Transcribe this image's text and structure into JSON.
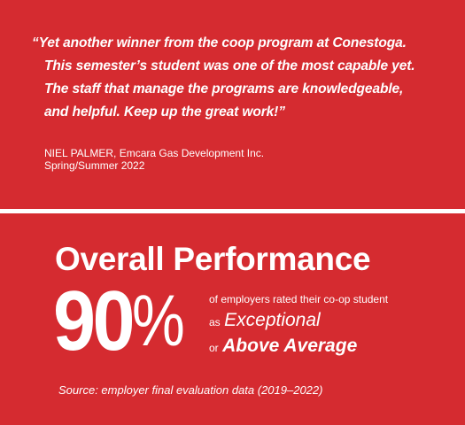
{
  "testimonial": {
    "quote_lines": [
      "“Yet another winner from the coop program at Conestoga.",
      "This semester’s student was one of the most capable yet.",
      "The staff that manage the programs are knowledgeable,",
      "and helpful.  Keep up the great work!”"
    ],
    "author": "NIEL PALMER, Emcara Gas Development Inc.",
    "term": "Spring/Summer 2022"
  },
  "performance": {
    "heading": "Overall Performance",
    "value_digits": "90",
    "value_symbol": "%",
    "value_percent": 90,
    "intro": "of employers rated their co-op student",
    "rating_1_prefix": "as",
    "rating_1": "Exceptional",
    "rating_2_prefix": "or",
    "rating_2": "Above Average",
    "source": "Source: employer final evaluation data (2019–2022)"
  },
  "colors": {
    "background": "#d52b30",
    "divider": "#ffffff",
    "text": "#ffffff"
  }
}
